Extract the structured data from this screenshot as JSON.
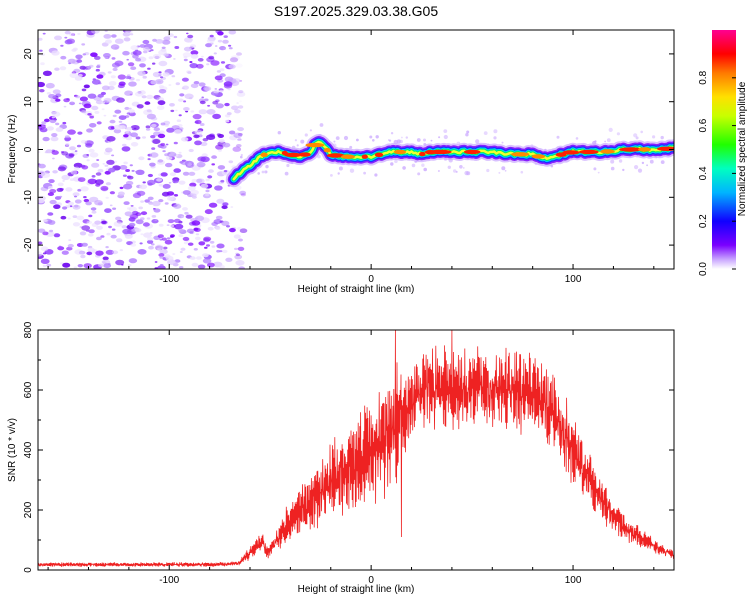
{
  "title": "S197.2025.329.03.38.G05",
  "chart_data": [
    {
      "type": "heatmap",
      "title": "S197.2025.329.03.38.G05",
      "xlabel": "Height of straight line (km)",
      "ylabel": "Frequency (Hz)",
      "xlim": [
        -165,
        150
      ],
      "ylim": [
        -25,
        25
      ],
      "x_ticks": [
        "-100",
        "0",
        "100"
      ],
      "x_tick_values": [
        -100,
        0,
        100
      ],
      "y_ticks": [
        "20",
        "10",
        "0",
        "-10",
        "-20"
      ],
      "y_tick_values": [
        20,
        10,
        0,
        -10,
        -20
      ],
      "noise_region": {
        "x_start": -165,
        "x_end": -68,
        "note": "scattered low-amplitude noise (purple)"
      },
      "ridge": {
        "x": [
          -68,
          -62,
          -55,
          -50,
          -45,
          -40,
          -35,
          -30,
          -27,
          -24,
          -20,
          -15,
          -10,
          -5,
          0,
          5,
          10,
          15,
          20,
          25,
          30,
          35,
          40,
          45,
          50,
          55,
          60,
          65,
          70,
          75,
          80,
          85,
          90,
          95,
          100,
          105,
          110,
          115,
          120,
          125,
          130,
          135,
          140,
          145,
          150
        ],
        "freq": [
          -6,
          -4,
          -1.5,
          -0.5,
          -0.5,
          -1,
          -1.5,
          -0.5,
          1.5,
          1,
          -1,
          -1.5,
          -1.5,
          -1.5,
          -1.5,
          -1,
          -0.5,
          -0.5,
          -0.5,
          -1,
          -0.5,
          -0.5,
          -0.5,
          -0.5,
          -0.5,
          -0.5,
          -0.5,
          -0.8,
          -1,
          -1,
          -1,
          -1.8,
          -1.5,
          -1,
          -0.5,
          -0.5,
          -0.5,
          -0.5,
          -0.3,
          0,
          0,
          0,
          0,
          0,
          0.5
        ],
        "description": "high-amplitude ridge (red/yellow core, green/blue edges) near 0 Hz"
      },
      "colorbar": {
        "label": "Normalized spectral amplitude",
        "range": [
          0,
          1
        ],
        "ticks": [
          "0.0",
          "0.2",
          "0.4",
          "0.6",
          "0.8"
        ],
        "tick_values": [
          0.0,
          0.2,
          0.4,
          0.6,
          0.8
        ],
        "colors": [
          "#ffffff",
          "#7a00ff",
          "#0000ff",
          "#00e0ff",
          "#00ff40",
          "#ffff00",
          "#ff8000",
          "#ff0000",
          "#ff00a0"
        ]
      }
    },
    {
      "type": "line",
      "xlabel": "Height of straight line (km)",
      "ylabel": "SNR (10 * v/v)",
      "xlim": [
        -165,
        150
      ],
      "ylim": [
        0,
        800
      ],
      "x_ticks": [
        "-100",
        "0",
        "100"
      ],
      "x_tick_values": [
        -100,
        0,
        100
      ],
      "y_ticks": [
        "0",
        "200",
        "400",
        "600",
        "800"
      ],
      "y_tick_values": [
        0,
        200,
        400,
        600,
        800
      ],
      "series": [
        {
          "name": "SNR",
          "color": "#ee2222",
          "x": [
            -165,
            -140,
            -120,
            -100,
            -80,
            -70,
            -65,
            -62,
            -58,
            -54,
            -52,
            -48,
            -45,
            -40,
            -35,
            -30,
            -25,
            -20,
            -15,
            -10,
            -5,
            0,
            5,
            8,
            12,
            15,
            20,
            25,
            30,
            40,
            50,
            60,
            70,
            80,
            85,
            90,
            95,
            100,
            105,
            110,
            115,
            120,
            125,
            130,
            135,
            140,
            145,
            150
          ],
          "y": [
            18,
            18,
            18,
            18,
            18,
            20,
            25,
            45,
            70,
            100,
            60,
            80,
            120,
            160,
            200,
            230,
            260,
            290,
            320,
            340,
            370,
            390,
            420,
            450,
            480,
            510,
            560,
            600,
            610,
            610,
            610,
            605,
            600,
            590,
            570,
            520,
            460,
            400,
            330,
            270,
            220,
            180,
            150,
            120,
            100,
            80,
            60,
            50
          ],
          "spikes": [
            {
              "x": 12,
              "y": 800
            },
            {
              "x": 15,
              "y": 110
            },
            {
              "x": 40,
              "y": 800
            }
          ]
        }
      ]
    }
  ]
}
